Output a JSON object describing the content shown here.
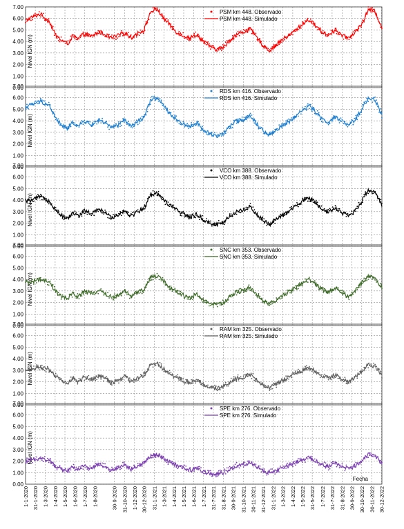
{
  "chart_data": {
    "type": "line",
    "x_axis": {
      "label": "Fecha",
      "tick_labels": [
        "1-1-2020",
        "31-1-2020",
        "1-3-2020",
        "1-4-2020",
        "1-5-2020",
        "1-6-2020",
        "1-7-2020",
        "1-8-2020",
        "30-9-2020",
        "31-10-2020",
        "1-12-2020",
        "30-12-2020",
        "31-1-2021",
        "1-3-2021",
        "1-4-2021",
        "1-5-2021",
        "1-6-2021",
        "1-7-2021",
        "31-7-2021",
        "31-8-2021",
        "30-9-2021",
        "31-10-2021",
        "30-11-2021",
        "31-12-2021",
        "31-1-2022",
        "1-3-2022",
        "1-4-2022",
        "1-5-2022",
        "31-5-2022",
        "1-7-2022",
        "31-7-2022",
        "31-8-2022",
        "30-9-2022",
        "30-10-2022",
        "30-11-2022",
        "30-12-2022"
      ],
      "range": [
        "2020-01-01",
        "2022-12-31"
      ]
    },
    "panels": [
      {
        "ylabel": "Nivel IGN (m)",
        "ylim": [
          0,
          7
        ],
        "yticks": [
          "0.00",
          "1.00",
          "2.00",
          "3.00",
          "4.00",
          "5.00",
          "6.00",
          "7.00"
        ],
        "color": "#ff0000",
        "legend": [
          "PSM km 448. Observado",
          "PSM km 448. Simulado"
        ],
        "series": [
          {
            "name": "PSM km 448. Observado",
            "marker": "dot"
          },
          {
            "name": "PSM km 448. Simulado",
            "marker": "line"
          }
        ],
        "x": [
          "2020-01-01",
          "2020-01-20",
          "2020-02-15",
          "2020-03-15",
          "2020-04-01",
          "2020-04-20",
          "2020-05-10",
          "2020-05-25",
          "2020-06-10",
          "2020-07-01",
          "2020-07-20",
          "2020-08-15",
          "2020-09-01",
          "2020-09-20",
          "2020-10-10",
          "2020-11-01",
          "2020-11-20",
          "2020-12-10",
          "2020-12-30",
          "2021-01-20",
          "2021-02-10",
          "2021-03-01",
          "2021-03-20",
          "2021-04-10",
          "2021-05-01",
          "2021-05-20",
          "2021-06-10",
          "2021-07-01",
          "2021-07-20",
          "2021-08-10",
          "2021-09-01",
          "2021-09-20",
          "2021-10-10",
          "2021-11-01",
          "2021-11-20",
          "2021-12-10",
          "2022-01-01",
          "2022-01-20",
          "2022-02-10",
          "2022-03-01",
          "2022-03-20",
          "2022-04-10",
          "2022-05-01",
          "2022-05-20",
          "2022-06-10",
          "2022-07-01",
          "2022-07-20",
          "2022-08-10",
          "2022-09-01",
          "2022-09-20",
          "2022-10-10",
          "2022-11-01",
          "2022-11-20",
          "2022-12-10",
          "2022-12-31"
        ],
        "y": [
          5.8,
          6.1,
          6.4,
          5.7,
          4.6,
          4.1,
          3.8,
          4.5,
          4.2,
          4.7,
          4.4,
          4.8,
          4.6,
          4.3,
          4.5,
          4.8,
          4.3,
          4.7,
          5.0,
          6.6,
          6.8,
          6.0,
          5.4,
          4.8,
          4.5,
          4.3,
          4.6,
          4.0,
          3.6,
          3.3,
          3.5,
          4.1,
          4.6,
          4.8,
          5.1,
          4.4,
          3.6,
          3.2,
          3.7,
          4.2,
          4.5,
          5.0,
          5.5,
          5.9,
          5.4,
          4.8,
          4.6,
          5.0,
          4.5,
          4.3,
          4.8,
          5.6,
          6.8,
          6.6,
          5.2
        ]
      },
      {
        "ylabel": "Nivel IGN (m)",
        "ylim": [
          0,
          7
        ],
        "yticks": [
          "0.00",
          "1.00",
          "2.00",
          "3.00",
          "4.00",
          "5.00",
          "6.00",
          "7.00"
        ],
        "color": "#1f7fd0",
        "legend": [
          "RDS km 416. Observado",
          "RDS km 416. Simulado"
        ],
        "series": [
          {
            "name": "RDS km 416. Observado",
            "marker": "dot"
          },
          {
            "name": "RDS km 416. Simulado",
            "marker": "line"
          }
        ],
        "x": [
          "2020-01-01",
          "2020-01-20",
          "2020-02-15",
          "2020-03-15",
          "2020-04-01",
          "2020-04-20",
          "2020-05-10",
          "2020-05-25",
          "2020-06-10",
          "2020-07-01",
          "2020-07-20",
          "2020-08-15",
          "2020-09-01",
          "2020-09-20",
          "2020-10-10",
          "2020-11-01",
          "2020-11-20",
          "2020-12-10",
          "2020-12-30",
          "2021-01-20",
          "2021-02-10",
          "2021-03-01",
          "2021-03-20",
          "2021-04-10",
          "2021-05-01",
          "2021-05-20",
          "2021-06-10",
          "2021-07-01",
          "2021-07-20",
          "2021-08-10",
          "2021-09-01",
          "2021-09-20",
          "2021-10-10",
          "2021-11-01",
          "2021-11-20",
          "2021-12-10",
          "2022-01-01",
          "2022-01-20",
          "2022-02-10",
          "2022-03-01",
          "2022-03-20",
          "2022-04-10",
          "2022-05-01",
          "2022-05-20",
          "2022-06-10",
          "2022-07-01",
          "2022-07-20",
          "2022-08-10",
          "2022-09-01",
          "2022-09-20",
          "2022-10-10",
          "2022-11-01",
          "2022-11-20",
          "2022-12-10",
          "2022-12-31"
        ],
        "y": [
          5.2,
          5.4,
          5.7,
          5.3,
          4.3,
          3.6,
          3.3,
          3.9,
          3.5,
          4.0,
          3.6,
          4.1,
          3.8,
          3.4,
          3.6,
          4.1,
          3.5,
          3.9,
          4.3,
          5.8,
          6.0,
          5.2,
          4.6,
          4.1,
          3.7,
          3.5,
          3.8,
          3.2,
          2.9,
          2.7,
          2.9,
          3.5,
          4.0,
          4.1,
          4.5,
          3.8,
          3.1,
          2.8,
          3.2,
          3.6,
          3.9,
          4.4,
          4.9,
          5.3,
          4.8,
          4.1,
          3.9,
          4.3,
          3.9,
          3.6,
          4.1,
          5.1,
          6.0,
          5.8,
          4.5
        ]
      },
      {
        "ylabel": "Nivel IGN (m)",
        "ylim": [
          0,
          7
        ],
        "yticks": [
          "0.00",
          "1.00",
          "2.00",
          "3.00",
          "4.00",
          "5.00",
          "6.00",
          "7.00"
        ],
        "color": "#000000",
        "legend": [
          "VCO km 388. Observado",
          "VCO km 388. Simulado"
        ],
        "series": [
          {
            "name": "VCO km 388. Observado",
            "marker": "dot"
          },
          {
            "name": "VCO km 388. Simulado",
            "marker": "line"
          }
        ],
        "x": [
          "2020-01-01",
          "2020-01-20",
          "2020-02-15",
          "2020-03-15",
          "2020-04-01",
          "2020-04-20",
          "2020-05-10",
          "2020-05-25",
          "2020-06-10",
          "2020-07-01",
          "2020-07-20",
          "2020-08-15",
          "2020-09-01",
          "2020-09-20",
          "2020-10-10",
          "2020-11-01",
          "2020-11-20",
          "2020-12-10",
          "2020-12-30",
          "2021-01-20",
          "2021-02-10",
          "2021-03-01",
          "2021-03-20",
          "2021-04-10",
          "2021-05-01",
          "2021-05-20",
          "2021-06-10",
          "2021-07-01",
          "2021-07-20",
          "2021-08-10",
          "2021-09-01",
          "2021-09-20",
          "2021-10-10",
          "2021-11-01",
          "2021-11-20",
          "2021-12-10",
          "2022-01-01",
          "2022-01-20",
          "2022-02-10",
          "2022-03-01",
          "2022-03-20",
          "2022-04-10",
          "2022-05-01",
          "2022-05-20",
          "2022-06-10",
          "2022-07-01",
          "2022-07-20",
          "2022-08-10",
          "2022-09-01",
          "2022-09-20",
          "2022-10-10",
          "2022-11-01",
          "2022-11-20",
          "2022-12-10",
          "2022-12-31"
        ],
        "y": [
          3.9,
          4.0,
          4.3,
          3.9,
          3.2,
          2.7,
          2.4,
          2.9,
          2.6,
          3.1,
          2.8,
          3.2,
          2.9,
          2.5,
          2.7,
          3.1,
          2.6,
          3.0,
          3.3,
          4.5,
          4.6,
          4.0,
          3.5,
          3.1,
          2.8,
          2.5,
          2.8,
          2.3,
          2.0,
          1.9,
          2.1,
          2.6,
          3.0,
          3.1,
          3.5,
          2.8,
          2.2,
          1.9,
          2.3,
          2.7,
          3.0,
          3.5,
          3.9,
          4.2,
          3.8,
          3.2,
          3.0,
          3.3,
          2.9,
          2.6,
          3.1,
          4.0,
          4.9,
          4.7,
          3.6
        ]
      },
      {
        "ylabel": "Nivel IGN (m)",
        "ylim": [
          0,
          7
        ],
        "yticks": [
          "0.00",
          "1.00",
          "2.00",
          "3.00",
          "4.00",
          "5.00",
          "6.00",
          "7.00"
        ],
        "color": "#3f6b2a",
        "legend": [
          "SNC km 353. Observado",
          "SNC km 353. Simulado"
        ],
        "series": [
          {
            "name": "SNC km 353. Observado",
            "marker": "dot"
          },
          {
            "name": "SNC km 353. Simulado",
            "marker": "line"
          }
        ],
        "x": [
          "2020-01-01",
          "2020-01-20",
          "2020-02-15",
          "2020-03-15",
          "2020-04-01",
          "2020-04-20",
          "2020-05-10",
          "2020-05-25",
          "2020-06-10",
          "2020-07-01",
          "2020-07-20",
          "2020-08-15",
          "2020-09-01",
          "2020-09-20",
          "2020-10-10",
          "2020-11-01",
          "2020-11-20",
          "2020-12-10",
          "2020-12-30",
          "2021-01-20",
          "2021-02-10",
          "2021-03-01",
          "2021-03-20",
          "2021-04-10",
          "2021-05-01",
          "2021-05-20",
          "2021-06-10",
          "2021-07-01",
          "2021-07-20",
          "2021-08-10",
          "2021-09-01",
          "2021-09-20",
          "2021-10-10",
          "2021-11-01",
          "2021-11-20",
          "2021-12-10",
          "2022-01-01",
          "2022-01-20",
          "2022-02-10",
          "2022-03-01",
          "2022-03-20",
          "2022-04-10",
          "2022-05-01",
          "2022-05-20",
          "2022-06-10",
          "2022-07-01",
          "2022-07-20",
          "2022-08-10",
          "2022-09-01",
          "2022-09-20",
          "2022-10-10",
          "2022-11-01",
          "2022-11-20",
          "2022-12-10",
          "2022-12-31"
        ],
        "y": [
          3.7,
          3.8,
          4.0,
          3.7,
          3.0,
          2.5,
          2.3,
          2.8,
          2.5,
          3.0,
          2.7,
          3.1,
          2.8,
          2.4,
          2.6,
          3.0,
          2.5,
          2.9,
          3.1,
          4.2,
          4.3,
          3.8,
          3.3,
          2.9,
          2.6,
          2.4,
          2.7,
          2.2,
          1.9,
          1.8,
          2.0,
          2.5,
          2.9,
          3.0,
          3.3,
          2.7,
          2.1,
          1.9,
          2.2,
          2.6,
          2.9,
          3.3,
          3.7,
          4.0,
          3.6,
          3.1,
          2.9,
          3.2,
          2.8,
          2.5,
          3.0,
          3.8,
          4.3,
          4.1,
          3.3
        ]
      },
      {
        "ylabel": "Nivel IGN (m)",
        "ylim": [
          0,
          7
        ],
        "yticks": [
          "0.00",
          "1.00",
          "2.00",
          "3.00",
          "4.00",
          "5.00",
          "6.00",
          "7.00"
        ],
        "color": "#5f5f5f",
        "legend": [
          "RAM km 325. Observado",
          "RAM km 325. Simulado"
        ],
        "series": [
          {
            "name": "RAM km 325. Observado",
            "marker": "dot"
          },
          {
            "name": "RAM km 325. Simulado",
            "marker": "line"
          }
        ],
        "x": [
          "2020-01-01",
          "2020-01-20",
          "2020-02-15",
          "2020-03-15",
          "2020-04-01",
          "2020-04-20",
          "2020-05-10",
          "2020-05-25",
          "2020-06-10",
          "2020-07-01",
          "2020-07-20",
          "2020-08-15",
          "2020-09-01",
          "2020-09-20",
          "2020-10-10",
          "2020-11-01",
          "2020-11-20",
          "2020-12-10",
          "2020-12-30",
          "2021-01-20",
          "2021-02-10",
          "2021-03-01",
          "2021-03-20",
          "2021-04-10",
          "2021-05-01",
          "2021-05-20",
          "2021-06-10",
          "2021-07-01",
          "2021-07-20",
          "2021-08-10",
          "2021-09-01",
          "2021-09-20",
          "2021-10-10",
          "2021-11-01",
          "2021-11-20",
          "2021-12-10",
          "2022-01-01",
          "2022-01-20",
          "2022-02-10",
          "2022-03-01",
          "2022-03-20",
          "2022-04-10",
          "2022-05-01",
          "2022-05-20",
          "2022-06-10",
          "2022-07-01",
          "2022-07-20",
          "2022-08-10",
          "2022-09-01",
          "2022-09-20",
          "2022-10-10",
          "2022-11-01",
          "2022-11-20",
          "2022-12-10",
          "2022-12-31"
        ],
        "y": [
          3.0,
          3.1,
          3.3,
          3.0,
          2.5,
          2.1,
          1.9,
          2.3,
          2.0,
          2.4,
          2.2,
          2.5,
          2.3,
          1.9,
          2.1,
          2.5,
          2.0,
          2.3,
          2.6,
          3.5,
          3.6,
          3.1,
          2.7,
          2.4,
          2.1,
          1.9,
          2.2,
          1.8,
          1.5,
          1.4,
          1.6,
          2.0,
          2.3,
          2.4,
          2.7,
          2.2,
          1.7,
          1.5,
          1.8,
          2.1,
          2.4,
          2.7,
          3.0,
          3.2,
          2.9,
          2.5,
          2.3,
          2.6,
          2.2,
          2.0,
          2.4,
          3.0,
          3.5,
          3.3,
          2.6
        ]
      },
      {
        "ylabel": "Nivel IGN (m)",
        "ylim": [
          0,
          7
        ],
        "yticks": [
          "0.00",
          "1.00",
          "2.00",
          "3.00",
          "4.00",
          "5.00",
          "6.00",
          "7.00"
        ],
        "color": "#7b3fb0",
        "legend": [
          "SPE km 276. Observado",
          "SPE km 276. Simulado"
        ],
        "series": [
          {
            "name": "SPE km 276. Observado",
            "marker": "dot"
          },
          {
            "name": "SPE km 276. Simulado",
            "marker": "line"
          }
        ],
        "x": [
          "2020-01-01",
          "2020-01-20",
          "2020-02-15",
          "2020-03-15",
          "2020-04-01",
          "2020-04-20",
          "2020-05-10",
          "2020-05-25",
          "2020-06-10",
          "2020-07-01",
          "2020-07-20",
          "2020-08-15",
          "2020-09-01",
          "2020-09-20",
          "2020-10-10",
          "2020-11-01",
          "2020-11-20",
          "2020-12-10",
          "2020-12-30",
          "2021-01-20",
          "2021-02-10",
          "2021-03-01",
          "2021-03-20",
          "2021-04-10",
          "2021-05-01",
          "2021-05-20",
          "2021-06-10",
          "2021-07-01",
          "2021-07-20",
          "2021-08-10",
          "2021-09-01",
          "2021-09-20",
          "2021-10-10",
          "2021-11-01",
          "2021-11-20",
          "2021-12-10",
          "2022-01-01",
          "2022-01-20",
          "2022-02-10",
          "2022-03-01",
          "2022-03-20",
          "2022-04-10",
          "2022-05-01",
          "2022-05-20",
          "2022-06-10",
          "2022-07-01",
          "2022-07-20",
          "2022-08-10",
          "2022-09-01",
          "2022-09-20",
          "2022-10-10",
          "2022-11-01",
          "2022-11-20",
          "2022-12-10",
          "2022-12-31"
        ],
        "y": [
          2.0,
          2.1,
          2.3,
          2.0,
          1.6,
          1.3,
          1.2,
          1.5,
          1.3,
          1.6,
          1.4,
          1.7,
          1.5,
          1.2,
          1.4,
          1.7,
          1.3,
          1.6,
          1.8,
          2.5,
          2.6,
          2.2,
          1.9,
          1.6,
          1.4,
          1.2,
          1.4,
          1.1,
          0.9,
          0.9,
          1.0,
          1.3,
          1.6,
          1.7,
          1.9,
          1.5,
          1.1,
          1.0,
          1.2,
          1.4,
          1.6,
          1.9,
          2.1,
          2.3,
          2.0,
          1.7,
          1.5,
          1.8,
          1.5,
          1.3,
          1.6,
          2.1,
          2.6,
          2.4,
          1.8
        ]
      }
    ]
  }
}
